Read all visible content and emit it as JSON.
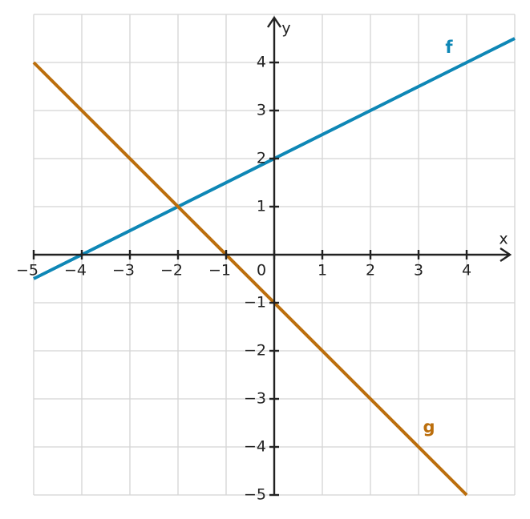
{
  "chart_data": {
    "type": "line",
    "x": [
      -5,
      4,
      5
    ],
    "series": [
      {
        "name": "f",
        "color": "#0e87b6",
        "values": [
          -0.5,
          4,
          4.5
        ]
      },
      {
        "name": "g",
        "color": "#bb6e0c",
        "values": [
          4,
          -5,
          null
        ]
      }
    ],
    "x_label": "x",
    "y_label": "y",
    "xlim": [
      -5,
      5
    ],
    "ylim": [
      -5,
      5
    ],
    "xticks": [
      {
        "value": -5,
        "label": "−5"
      },
      {
        "value": -4,
        "label": "−4"
      },
      {
        "value": -3,
        "label": "−3"
      },
      {
        "value": -2,
        "label": "−2"
      },
      {
        "value": -1,
        "label": "−1"
      },
      0,
      1,
      2,
      3,
      4
    ],
    "yticks": [
      {
        "value": -5,
        "label": "−5"
      },
      {
        "value": -4,
        "label": "−4"
      },
      {
        "value": -3,
        "label": "−3"
      },
      {
        "value": -2,
        "label": "−2"
      },
      {
        "value": -1,
        "label": "−1"
      },
      1,
      2,
      3,
      4
    ],
    "grid": true
  }
}
